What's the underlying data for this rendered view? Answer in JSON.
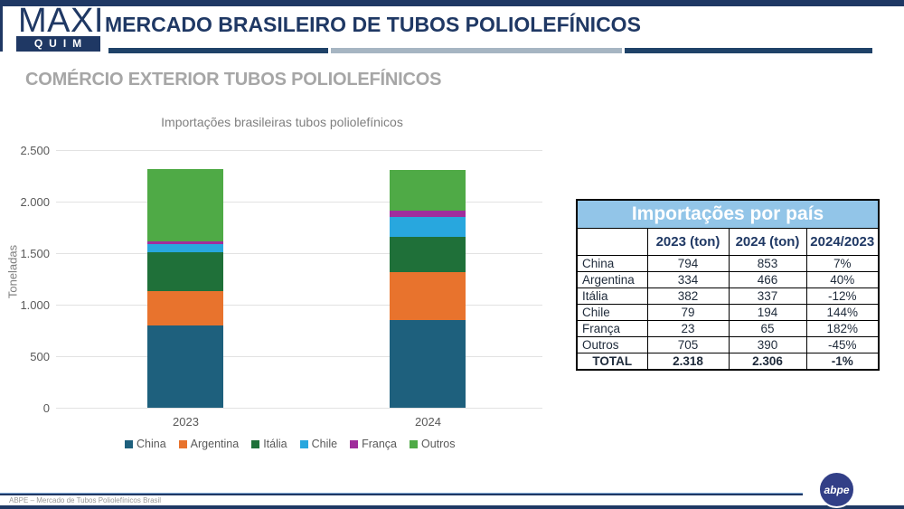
{
  "header": {
    "logo_line1": "MAXI",
    "logo_line2": "QUIM",
    "title": "MERCADO BRASILEIRO DE TUBOS POLIOLEFÍNICOS"
  },
  "section_title": "COMÉRCIO EXTERIOR TUBOS POLIOLEFÍNICOS",
  "chart_data": {
    "type": "bar",
    "stacked": true,
    "title": "Importações brasileiras tubos poliolefínicos",
    "ylabel": "Toneladas",
    "categories": [
      "2023",
      "2024"
    ],
    "series": [
      {
        "name": "China",
        "color": "#1E607D",
        "values": [
          794,
          853
        ]
      },
      {
        "name": "Argentina",
        "color": "#E8732D",
        "values": [
          334,
          466
        ]
      },
      {
        "name": "Itália",
        "color": "#1F7039",
        "values": [
          382,
          337
        ]
      },
      {
        "name": "Chile",
        "color": "#28A7DE",
        "values": [
          79,
          194
        ]
      },
      {
        "name": "França",
        "color": "#A02D9C",
        "values": [
          23,
          65
        ]
      },
      {
        "name": "Outros",
        "color": "#4FAA46",
        "values": [
          705,
          390
        ]
      }
    ],
    "ylim": [
      0,
      2500
    ],
    "ytick_step": 500,
    "ytick_labels": [
      "0",
      "500",
      "1.000",
      "1.500",
      "2.000",
      "2.500"
    ],
    "grid": true,
    "legend_position": "bottom"
  },
  "table": {
    "title": "Importações por país",
    "columns": [
      "",
      "2023 (ton)",
      "2024 (ton)",
      "2024/2023"
    ],
    "rows": [
      [
        "China",
        "794",
        "853",
        "7%"
      ],
      [
        "Argentina",
        "334",
        "466",
        "40%"
      ],
      [
        "Itália",
        "382",
        "337",
        "-12%"
      ],
      [
        "Chile",
        "79",
        "194",
        "144%"
      ],
      [
        "França",
        "23",
        "65",
        "182%"
      ],
      [
        "Outros",
        "705",
        "390",
        "-45%"
      ],
      [
        "TOTAL",
        "2.318",
        "2.306",
        "-1%"
      ]
    ]
  },
  "footer": {
    "text": "ABPE – Mercado de Tubos Poliolefínicos Brasil",
    "logo_text": "abpe"
  }
}
